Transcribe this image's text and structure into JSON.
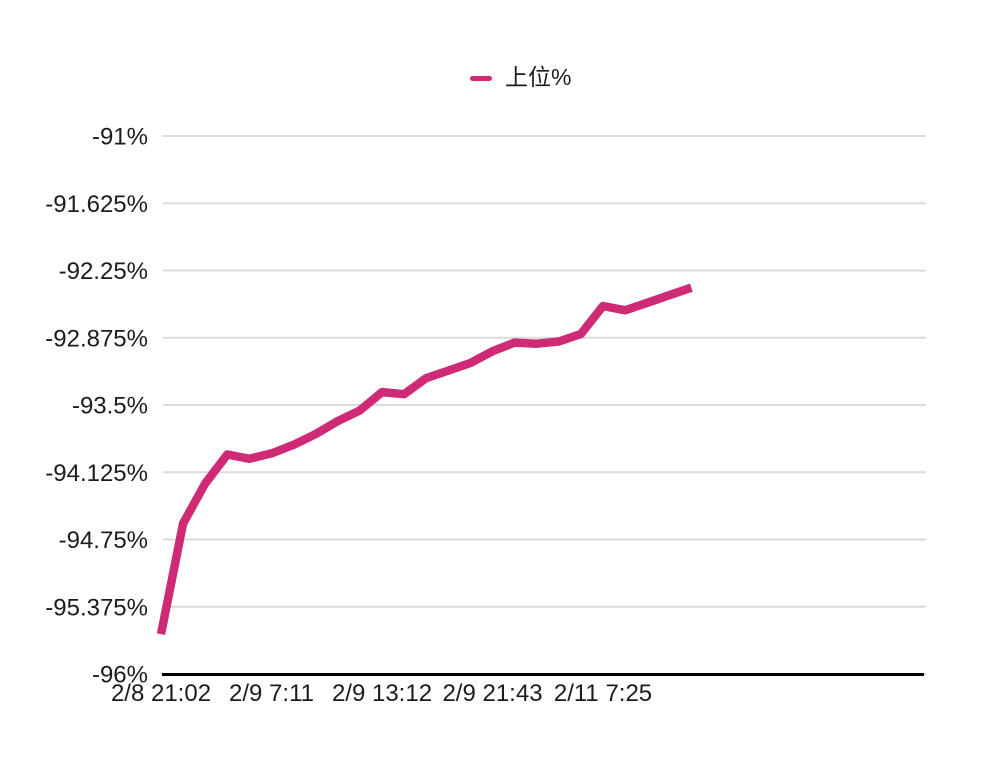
{
  "page": {
    "background": "#ffffff",
    "text_color": "#1c1c1c"
  },
  "legend": {
    "position": "top-center",
    "items": [
      {
        "label": "上位%",
        "marker": "dash-icon",
        "color": "#cf2a76"
      }
    ]
  },
  "chart_data": {
    "type": "line",
    "title": "",
    "xlabel": "",
    "ylabel": "",
    "categories": [
      "2/8 21:02",
      "",
      "",
      "",
      "",
      "2/9 7:11",
      "",
      "",
      "",
      "",
      "2/9 13:12",
      "",
      "",
      "",
      "",
      "2/9 21:43",
      "",
      "",
      "",
      "",
      "2/11 7:25",
      "",
      "",
      "",
      ""
    ],
    "x_tick_labels": [
      "2/8 21:02",
      "2/9 7:11",
      "2/9 13:12",
      "2/9 21:43",
      "2/11 7:25"
    ],
    "x_tick_every": 5,
    "series": [
      {
        "name": "上位%",
        "color": "#cf2a76",
        "values": [
          -95.63,
          -94.6,
          -94.23,
          -93.96,
          -94.0,
          -93.95,
          -93.87,
          -93.77,
          -93.65,
          -93.55,
          -93.38,
          -93.4,
          -93.25,
          -93.18,
          -93.11,
          -93.0,
          -92.92,
          -92.93,
          -92.91,
          -92.84,
          -92.58,
          -92.62,
          -92.55,
          -92.48,
          -92.41
        ]
      }
    ],
    "ylim": [
      -96,
      -91
    ],
    "y_ticks": [
      {
        "label": "-91%",
        "value": -91
      },
      {
        "label": "-91.625%",
        "value": -91.625
      },
      {
        "label": "-92.25%",
        "value": -92.25
      },
      {
        "label": "-92.875%",
        "value": -92.875
      },
      {
        "label": "-93.5%",
        "value": -93.5
      },
      {
        "label": "-94.125%",
        "value": -94.125
      },
      {
        "label": "-94.75%",
        "value": -94.75
      },
      {
        "label": "-95.375%",
        "value": -95.375
      },
      {
        "label": "-96%",
        "value": -96
      }
    ],
    "grid": true,
    "grid_color": "#dbdbdb",
    "axis_line_color": "#000000",
    "legend_position": "top"
  }
}
